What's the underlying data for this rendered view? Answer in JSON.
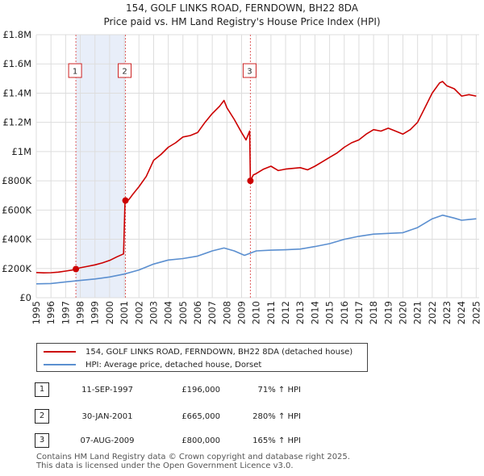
{
  "chart_data": {
    "type": "line",
    "title": "154, GOLF LINKS ROAD, FERNDOWN, BH22 8DA",
    "subtitle": "Price paid vs. HM Land Registry's House Price Index (HPI)",
    "xlim": [
      1995,
      2025.2
    ],
    "ylim": [
      0,
      1800000
    ],
    "y_ticks": [
      {
        "value": 0,
        "label": "£0"
      },
      {
        "value": 200000,
        "label": "£200K"
      },
      {
        "value": 400000,
        "label": "£400K"
      },
      {
        "value": 600000,
        "label": "£600K"
      },
      {
        "value": 800000,
        "label": "£800K"
      },
      {
        "value": 1000000,
        "label": "£1M"
      },
      {
        "value": 1200000,
        "label": "£1.2M"
      },
      {
        "value": 1400000,
        "label": "£1.4M"
      },
      {
        "value": 1600000,
        "label": "£1.6M"
      },
      {
        "value": 1800000,
        "label": "£1.8M"
      }
    ],
    "x_ticks": [
      "1995",
      "1996",
      "1997",
      "1998",
      "1999",
      "2000",
      "2001",
      "2002",
      "2003",
      "2004",
      "2005",
      "2006",
      "2007",
      "2008",
      "2009",
      "2010",
      "2011",
      "2012",
      "2013",
      "2014",
      "2015",
      "2016",
      "2017",
      "2018",
      "2019",
      "2020",
      "2021",
      "2022",
      "2023",
      "2024",
      "2025"
    ],
    "grid": true,
    "series": [
      {
        "name": "154, GOLF LINKS ROAD, FERNDOWN, BH22 8DA (detached house)",
        "color": "#cc0000",
        "points": [
          [
            1995.0,
            172000
          ],
          [
            1995.5,
            170000
          ],
          [
            1996.0,
            171000
          ],
          [
            1996.5,
            175000
          ],
          [
            1997.0,
            182000
          ],
          [
            1997.5,
            190000
          ],
          [
            1997.7,
            196000
          ],
          [
            1998.0,
            205000
          ],
          [
            1998.5,
            215000
          ],
          [
            1999.0,
            225000
          ],
          [
            1999.5,
            238000
          ],
          [
            2000.0,
            255000
          ],
          [
            2000.5,
            280000
          ],
          [
            2000.95,
            300000
          ],
          [
            2001.05,
            665000
          ],
          [
            2001.3,
            670000
          ],
          [
            2001.6,
            710000
          ],
          [
            2002.0,
            760000
          ],
          [
            2002.5,
            830000
          ],
          [
            2003.0,
            940000
          ],
          [
            2003.5,
            980000
          ],
          [
            2004.0,
            1030000
          ],
          [
            2004.5,
            1060000
          ],
          [
            2005.0,
            1100000
          ],
          [
            2005.5,
            1110000
          ],
          [
            2006.0,
            1130000
          ],
          [
            2006.5,
            1200000
          ],
          [
            2007.0,
            1260000
          ],
          [
            2007.5,
            1310000
          ],
          [
            2007.8,
            1350000
          ],
          [
            2008.0,
            1300000
          ],
          [
            2008.5,
            1220000
          ],
          [
            2009.0,
            1130000
          ],
          [
            2009.3,
            1080000
          ],
          [
            2009.55,
            1140000
          ],
          [
            2009.6,
            800000
          ],
          [
            2009.8,
            840000
          ],
          [
            2010.0,
            850000
          ],
          [
            2010.5,
            880000
          ],
          [
            2011.0,
            900000
          ],
          [
            2011.5,
            870000
          ],
          [
            2012.0,
            880000
          ],
          [
            2012.5,
            885000
          ],
          [
            2013.0,
            890000
          ],
          [
            2013.5,
            875000
          ],
          [
            2014.0,
            900000
          ],
          [
            2014.5,
            930000
          ],
          [
            2015.0,
            960000
          ],
          [
            2015.5,
            990000
          ],
          [
            2016.0,
            1030000
          ],
          [
            2016.5,
            1060000
          ],
          [
            2017.0,
            1080000
          ],
          [
            2017.5,
            1120000
          ],
          [
            2018.0,
            1150000
          ],
          [
            2018.5,
            1140000
          ],
          [
            2019.0,
            1160000
          ],
          [
            2019.5,
            1140000
          ],
          [
            2020.0,
            1120000
          ],
          [
            2020.5,
            1150000
          ],
          [
            2021.0,
            1200000
          ],
          [
            2021.5,
            1300000
          ],
          [
            2022.0,
            1400000
          ],
          [
            2022.5,
            1470000
          ],
          [
            2022.7,
            1480000
          ],
          [
            2023.0,
            1450000
          ],
          [
            2023.5,
            1430000
          ],
          [
            2024.0,
            1380000
          ],
          [
            2024.5,
            1390000
          ],
          [
            2025.0,
            1380000
          ]
        ]
      },
      {
        "name": "HPI: Average price, detached house, Dorset",
        "color": "#5b8fd0",
        "points": [
          [
            1995.0,
            95000
          ],
          [
            1996.0,
            97000
          ],
          [
            1997.0,
            108000
          ],
          [
            1998.0,
            118000
          ],
          [
            1999.0,
            128000
          ],
          [
            2000.0,
            142000
          ],
          [
            2001.0,
            162000
          ],
          [
            2002.0,
            190000
          ],
          [
            2003.0,
            230000
          ],
          [
            2004.0,
            258000
          ],
          [
            2005.0,
            268000
          ],
          [
            2006.0,
            285000
          ],
          [
            2007.0,
            320000
          ],
          [
            2007.8,
            340000
          ],
          [
            2008.5,
            320000
          ],
          [
            2009.2,
            290000
          ],
          [
            2010.0,
            320000
          ],
          [
            2011.0,
            325000
          ],
          [
            2012.0,
            328000
          ],
          [
            2013.0,
            333000
          ],
          [
            2014.0,
            350000
          ],
          [
            2015.0,
            370000
          ],
          [
            2016.0,
            400000
          ],
          [
            2017.0,
            420000
          ],
          [
            2018.0,
            435000
          ],
          [
            2019.0,
            440000
          ],
          [
            2020.0,
            445000
          ],
          [
            2021.0,
            480000
          ],
          [
            2022.0,
            540000
          ],
          [
            2022.7,
            565000
          ],
          [
            2023.5,
            545000
          ],
          [
            2024.0,
            530000
          ],
          [
            2024.5,
            535000
          ],
          [
            2025.0,
            540000
          ]
        ]
      }
    ],
    "sales": [
      {
        "label": "1",
        "x": 1997.7,
        "y": 196000
      },
      {
        "label": "2",
        "x": 2001.08,
        "y": 665000
      },
      {
        "label": "3",
        "x": 2009.6,
        "y": 800000
      }
    ],
    "shade_regions": [
      [
        1997.7,
        2001.08
      ]
    ]
  },
  "legend": {
    "property": "154, GOLF LINKS ROAD, FERNDOWN, BH22 8DA (detached house)",
    "hpi": "HPI: Average price, detached house, Dorset"
  },
  "transactions": [
    {
      "num": "1",
      "date": "11-SEP-1997",
      "price": "£196,000",
      "hpi": "71% ↑ HPI"
    },
    {
      "num": "2",
      "date": "30-JAN-2001",
      "price": "£665,000",
      "hpi": "280% ↑ HPI"
    },
    {
      "num": "3",
      "date": "07-AUG-2009",
      "price": "£800,000",
      "hpi": "165% ↑ HPI"
    }
  ],
  "footer": {
    "line1": "Contains HM Land Registry data © Crown copyright and database right 2025.",
    "line2": "This data is licensed under the Open Government Licence v3.0."
  }
}
